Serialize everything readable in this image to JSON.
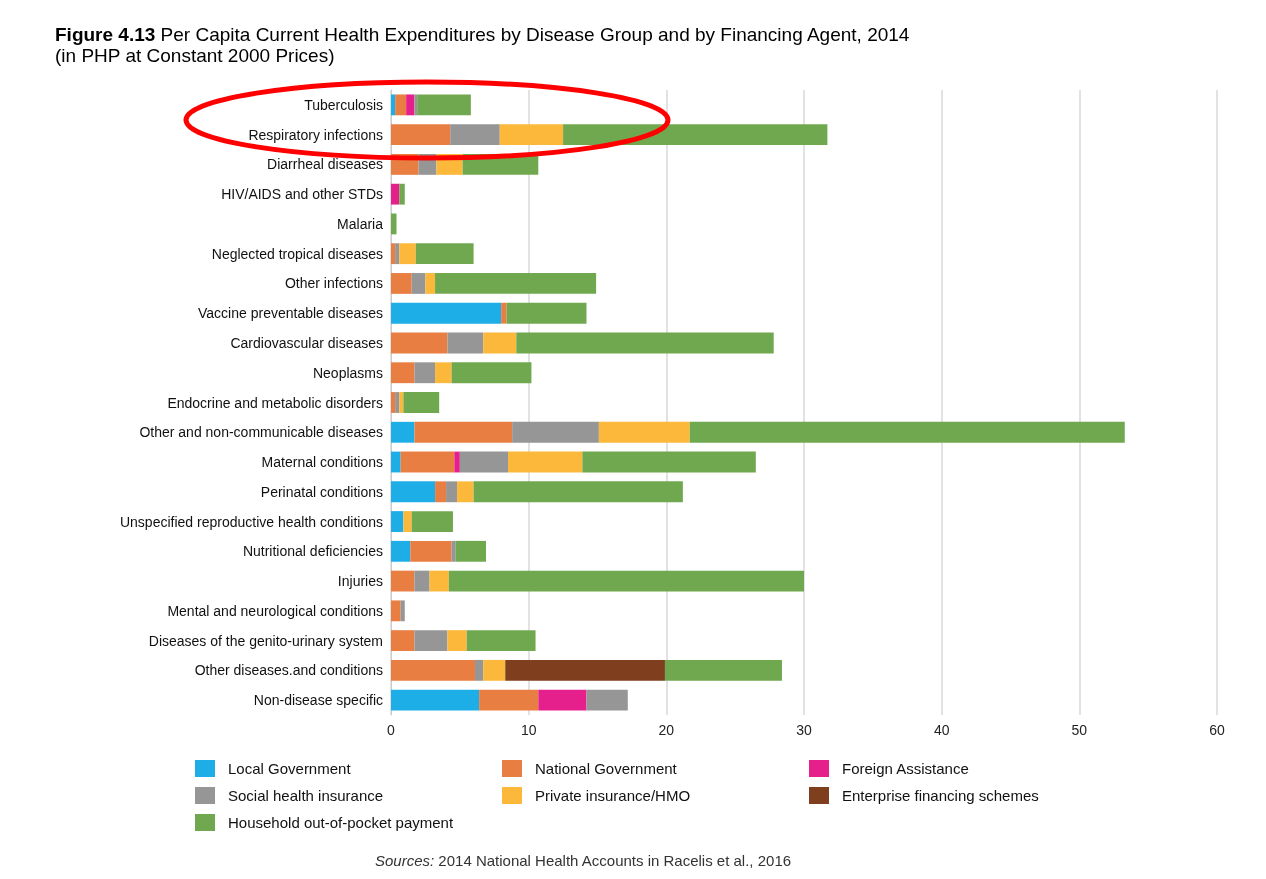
{
  "chart_data": {
    "type": "bar",
    "orientation": "horizontal",
    "stacked": true,
    "title": "Figure 4.13 Per Capita Current Health Expenditures by Disease Group and by Financing Agent, 2014",
    "subtitle": "(in PHP at Constant 2000 Prices)",
    "categories": [
      "Tuberculosis",
      "Respiratory infections",
      "Diarrheal diseases",
      "HIV/AIDS and other STDs",
      "Malaria",
      "Neglected tropical diseases",
      "Other infections",
      "Vaccine preventable diseases",
      "Cardiovascular diseases",
      "Neoplasms",
      "Endocrine and metabolic disorders",
      "Other and non-communicable diseases",
      "Maternal conditions",
      "Perinatal conditions",
      "Unspecified reproductive health conditions",
      "Nutritional deficiencies",
      "Injuries",
      "Mental and neurological conditions",
      "Diseases of the genito-urinary system",
      "Other diseases.and conditions",
      "Non-disease specific"
    ],
    "series": [
      {
        "name": "Local Government",
        "color": "#1daee8",
        "values": [
          0.3,
          null,
          null,
          null,
          null,
          null,
          null,
          8.0,
          null,
          null,
          null,
          1.7,
          0.7,
          3.2,
          0.9,
          1.4,
          null,
          null,
          null,
          null,
          6.4
        ]
      },
      {
        "name": "National Government",
        "color": "#e97e42",
        "values": [
          0.8,
          4.3,
          2.0,
          null,
          null,
          0.3,
          1.5,
          0.4,
          4.1,
          1.7,
          0.3,
          7.1,
          3.9,
          0.8,
          null,
          3.0,
          1.7,
          0.7,
          1.7,
          6.1,
          4.3
        ]
      },
      {
        "name": "Foreign Assistance",
        "color": "#e5208c",
        "values": [
          0.6,
          null,
          null,
          0.6,
          null,
          null,
          null,
          null,
          null,
          null,
          null,
          null,
          0.4,
          null,
          null,
          null,
          null,
          null,
          null,
          null,
          3.5
        ]
      },
      {
        "name": "Social health insurance",
        "color": "#969696",
        "values": [
          0.2,
          3.6,
          1.3,
          null,
          null,
          0.3,
          1.0,
          null,
          2.6,
          1.5,
          0.3,
          6.3,
          3.5,
          0.8,
          null,
          0.3,
          1.1,
          0.3,
          2.4,
          0.6,
          3.0
        ]
      },
      {
        "name": "Private insurance/HMO",
        "color": "#fbb83a",
        "values": [
          null,
          4.6,
          1.9,
          null,
          null,
          1.2,
          0.7,
          null,
          2.4,
          1.2,
          0.3,
          6.6,
          5.4,
          1.2,
          0.6,
          null,
          1.4,
          null,
          1.4,
          1.6,
          null
        ]
      },
      {
        "name": "Enterprise financing schemes",
        "color": "#7f3f1f",
        "values": [
          null,
          null,
          null,
          null,
          null,
          null,
          null,
          null,
          null,
          null,
          null,
          null,
          null,
          null,
          null,
          null,
          null,
          null,
          null,
          11.6,
          null
        ]
      },
      {
        "name": "Household out-of-pocket payment",
        "color": "#70a84f",
        "values": [
          3.9,
          19.2,
          5.5,
          0.4,
          0.4,
          4.2,
          11.7,
          5.8,
          18.7,
          5.8,
          2.6,
          31.6,
          12.6,
          15.2,
          3.0,
          2.2,
          25.8,
          null,
          5.0,
          8.5,
          null
        ]
      }
    ],
    "xlim": [
      0,
      60
    ],
    "xticks": [
      0,
      10,
      20,
      30,
      40,
      50,
      60
    ],
    "grid": "x",
    "legend": "bottom",
    "annotations": [
      "Sources: 2014 National Health Accounts in Racelis et al., 2016"
    ]
  }
}
